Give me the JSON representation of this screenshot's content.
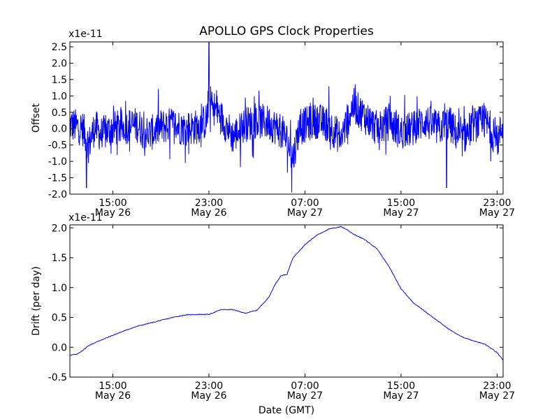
{
  "title": "APOLLO GPS Clock Properties",
  "xlabel": "Date (GMT)",
  "x_ticks": [
    {
      "time": "15:00",
      "date": "May 26"
    },
    {
      "time": "23:00",
      "date": "May 26"
    },
    {
      "time": "07:00",
      "date": "May 27"
    },
    {
      "time": "15:00",
      "date": "May 27"
    },
    {
      "time": "23:00",
      "date": "May 27"
    }
  ],
  "chart_data": [
    {
      "type": "line",
      "title": "APOLLO GPS Clock Properties",
      "xlabel": "",
      "ylabel": "Offset",
      "y_multiplier": "x1e-11",
      "xlim": [
        "May 26 11:25",
        "May 27 23:30"
      ],
      "ylim": [
        -2.0,
        2.65
      ],
      "y_ticks": [
        "-2.0",
        "-1.5",
        "-1.0",
        "-0.5",
        "0.0",
        "0.5",
        "1.0",
        "1.5",
        "2.0",
        "2.5"
      ],
      "line_color": "#0000ff",
      "x_hours_from_may26_0000": [
        11.5,
        12.5,
        13.0,
        13.5,
        14.0,
        15.0,
        16.0,
        17.0,
        18.0,
        19.0,
        20.0,
        21.0,
        22.0,
        22.8,
        23.0,
        23.5,
        24.0,
        25.0,
        26.0,
        27.0,
        28.0,
        29.0,
        29.5,
        30.0,
        30.5,
        31.0,
        32.0,
        33.0,
        34.0,
        35.0,
        35.5,
        36.0,
        37.0,
        38.0,
        39.0,
        40.0,
        41.0,
        42.0,
        43.0,
        44.0,
        45.0,
        46.0,
        46.5,
        47.0,
        47.5
      ],
      "values": [
        0.2,
        0.0,
        -0.8,
        0.1,
        -0.3,
        0.0,
        0.1,
        0.2,
        -0.3,
        0.1,
        0.2,
        0.0,
        0.1,
        0.4,
        1.4,
        1.0,
        0.6,
        -0.4,
        0.2,
        0.4,
        0.3,
        -0.1,
        -0.6,
        -1.5,
        0.0,
        0.2,
        0.4,
        0.2,
        -0.5,
        1.2,
        0.9,
        0.6,
        0.0,
        0.3,
        -0.2,
        0.0,
        0.4,
        0.0,
        0.3,
        -0.6,
        0.2,
        0.3,
        0.0,
        -0.7,
        0.3
      ],
      "peaks": [
        {
          "x": 23.0,
          "value": 2.65
        },
        {
          "x": 29.9,
          "value": -1.95
        },
        {
          "x": 12.8,
          "value": -1.8
        },
        {
          "x": 42.8,
          "value": -1.8
        }
      ]
    },
    {
      "type": "line",
      "xlabel": "Date (GMT)",
      "ylabel": "Drift (per day)",
      "y_multiplier": "x1e-11",
      "xlim": [
        "May 26 11:25",
        "May 27 23:30"
      ],
      "ylim": [
        -0.5,
        2.05
      ],
      "y_ticks": [
        "-0.5",
        "0.0",
        "0.5",
        "1.0",
        "1.5",
        "2.0"
      ],
      "line_color": "#0000ff",
      "x_hours_from_may26_0000": [
        11.42,
        12.0,
        12.5,
        13.0,
        14.0,
        15.0,
        16.0,
        17.0,
        18.0,
        19.0,
        20.0,
        21.0,
        22.0,
        23.0,
        24.0,
        25.0,
        26.0,
        27.0,
        28.0,
        28.5,
        29.0,
        29.5,
        30.0,
        31.0,
        32.0,
        33.0,
        34.0,
        34.5,
        35.0,
        36.0,
        37.0,
        38.0,
        39.0,
        40.0,
        41.0,
        42.0,
        43.0,
        44.0,
        45.0,
        46.0,
        47.0,
        47.5
      ],
      "values": [
        -0.13,
        -0.12,
        -0.05,
        0.03,
        0.12,
        0.2,
        0.28,
        0.35,
        0.4,
        0.45,
        0.5,
        0.54,
        0.55,
        0.55,
        0.63,
        0.63,
        0.57,
        0.62,
        0.84,
        1.05,
        1.2,
        1.22,
        1.5,
        1.72,
        1.88,
        1.98,
        2.02,
        1.97,
        1.9,
        1.8,
        1.65,
        1.35,
        0.98,
        0.75,
        0.6,
        0.45,
        0.3,
        0.18,
        0.11,
        0.05,
        -0.09,
        -0.22
      ]
    }
  ]
}
